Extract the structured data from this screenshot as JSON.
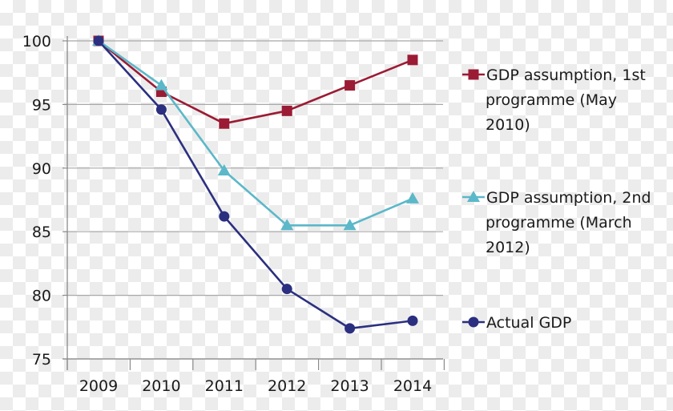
{
  "chart_data": {
    "type": "line",
    "title": "",
    "xlabel": "",
    "ylabel": "",
    "categories": [
      "2009",
      "2010",
      "2011",
      "2012",
      "2013",
      "2014"
    ],
    "ylim": [
      75,
      100
    ],
    "yticks": [
      75,
      80,
      85,
      90,
      95,
      100
    ],
    "grid": true,
    "legend_position": "right",
    "series": [
      {
        "name": "GDP assumption, 1st programme (May 2010)",
        "legend_lines": [
          "GDP assumption, 1st",
          "programme (May",
          "2010)"
        ],
        "marker": "square",
        "color": "#9b1b34",
        "values": [
          100,
          96.0,
          93.5,
          94.5,
          96.5,
          98.5
        ]
      },
      {
        "name": "GDP assumption, 2nd programme (March 2012)",
        "legend_lines": [
          "GDP assumption, 2nd",
          "programme (March",
          "2012)"
        ],
        "marker": "triangle",
        "color": "#5bb8c9",
        "values": [
          100,
          96.5,
          89.8,
          85.5,
          85.5,
          87.6
        ]
      },
      {
        "name": "Actual GDP",
        "legend_lines": [
          "Actual GDP"
        ],
        "marker": "circle",
        "color": "#2b2f7f",
        "values": [
          100,
          94.6,
          86.2,
          80.5,
          77.4,
          78.0
        ]
      }
    ]
  }
}
